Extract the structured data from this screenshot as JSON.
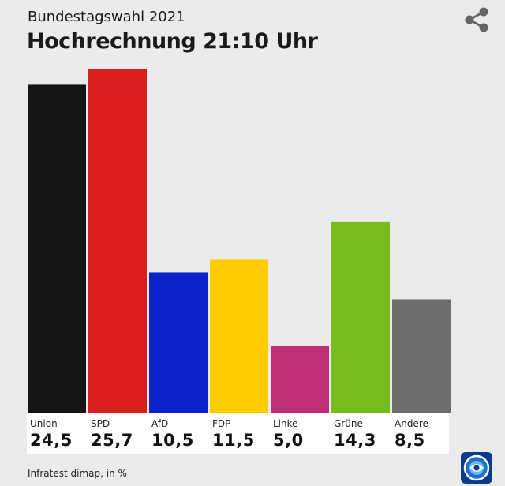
{
  "header": {
    "subtitle": "Bundestagswahl 2021",
    "title": "Hochrechnung 21:10 Uhr"
  },
  "icons": {
    "share": "share-icon",
    "logo": "tagesschau-logo"
  },
  "footer": {
    "source": "Infratest dimap, in %"
  },
  "chart_data": {
    "type": "bar",
    "title": "Hochrechnung 21:10 Uhr",
    "subtitle": "Bundestagswahl 2021",
    "categories": [
      "Union",
      "SPD",
      "AfD",
      "FDP",
      "Linke",
      "Grüne",
      "Andere"
    ],
    "values": [
      24.5,
      25.7,
      10.5,
      11.5,
      5.0,
      14.3,
      8.5
    ],
    "value_labels": [
      "24,5",
      "25,7",
      "10,5",
      "11,5",
      "5,0",
      "14,3",
      "8,5"
    ],
    "colors": [
      "#151515",
      "#d81e1e",
      "#0a22c8",
      "#ffcc00",
      "#be3075",
      "#77bb1e",
      "#6e6e6e"
    ],
    "ylim": [
      0,
      25.7
    ],
    "grid": false,
    "legend": "none"
  }
}
